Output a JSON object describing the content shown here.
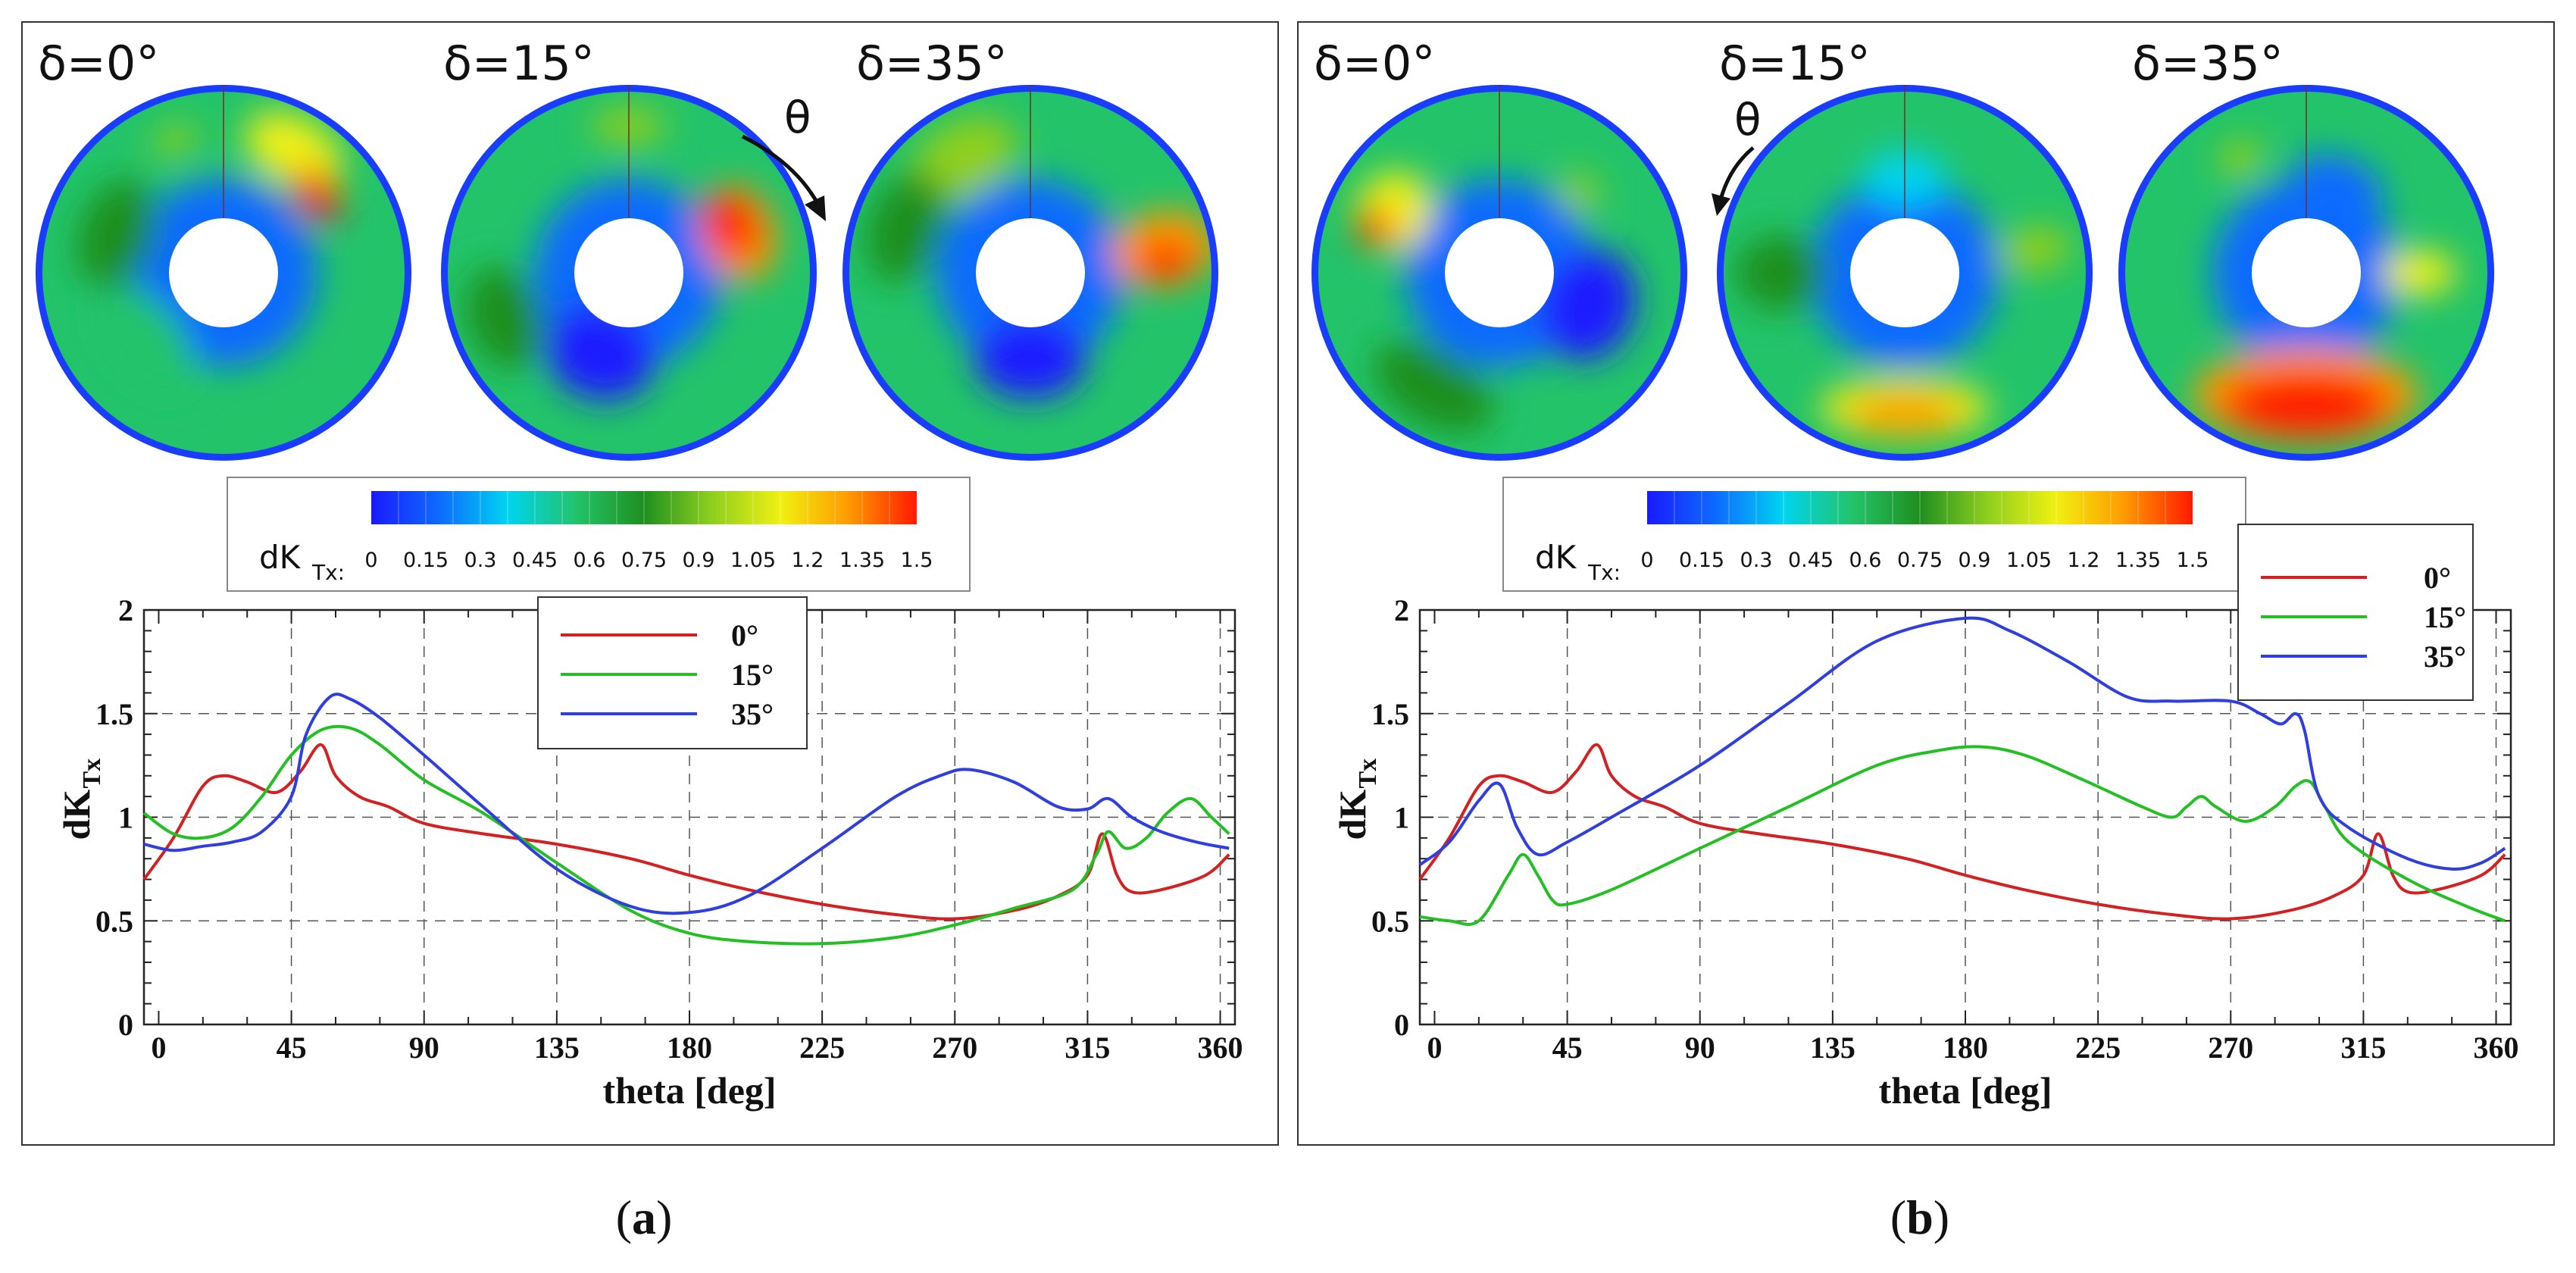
{
  "colors": {
    "s0": "#d42020",
    "s15": "#22c022",
    "s35": "#2e3ee0",
    "cmap": [
      "#1a1aff",
      "#0d6bff",
      "#00d4f0",
      "#23c36a",
      "#1f8f1f",
      "#8fcf1f",
      "#f0f012",
      "#ff9a00",
      "#ff1a00"
    ]
  },
  "panels": [
    {
      "label": "a",
      "contour_titles": [
        "δ=0°",
        "δ=15°",
        "δ=35°"
      ],
      "theta_arrow": "θ",
      "colorbar": {
        "label_main": "dK",
        "label_sub": "Tx:",
        "ticks": [
          "0",
          "0.15",
          "0.3",
          "0.45",
          "0.6",
          "0.75",
          "0.9",
          "1.05",
          "1.2",
          "1.35",
          "1.5"
        ]
      },
      "chart_data": {
        "type": "line",
        "xlabel": "theta [deg]",
        "ylabel_main": "dK",
        "ylabel_sub": "Tx",
        "xlim": [
          -5,
          365
        ],
        "ylim": [
          0,
          2
        ],
        "xticks": [
          0,
          45,
          90,
          135,
          180,
          225,
          270,
          315,
          360
        ],
        "yticks": [
          0,
          0.5,
          1,
          1.5,
          2
        ],
        "ytick_labels": [
          "0",
          "0.5",
          "1",
          "1.5",
          "2"
        ],
        "grid": true,
        "legend_position": "top-center",
        "series": [
          {
            "name": "0°",
            "color_key": "s0",
            "x": [
              -5,
              5,
              15,
              22,
              30,
              40,
              48,
              55,
              60,
              68,
              78,
              90,
              110,
              135,
              160,
              180,
              200,
              225,
              250,
              270,
              290,
              305,
              315,
              320,
              325,
              330,
              340,
              355,
              363
            ],
            "y": [
              0.7,
              0.9,
              1.15,
              1.2,
              1.17,
              1.12,
              1.22,
              1.35,
              1.2,
              1.1,
              1.05,
              0.97,
              0.92,
              0.87,
              0.8,
              0.72,
              0.65,
              0.58,
              0.53,
              0.51,
              0.55,
              0.62,
              0.72,
              0.92,
              0.72,
              0.64,
              0.65,
              0.72,
              0.82
            ]
          },
          {
            "name": "15°",
            "color_key": "s15",
            "x": [
              -5,
              5,
              15,
              25,
              35,
              45,
              55,
              65,
              75,
              90,
              110,
              135,
              160,
              180,
              200,
              225,
              250,
              270,
              290,
              310,
              318,
              322,
              328,
              335,
              342,
              350,
              357,
              363
            ],
            "y": [
              1.02,
              0.92,
              0.9,
              0.95,
              1.1,
              1.3,
              1.42,
              1.43,
              1.35,
              1.18,
              1.02,
              0.78,
              0.55,
              0.44,
              0.4,
              0.39,
              0.42,
              0.48,
              0.56,
              0.65,
              0.82,
              0.93,
              0.85,
              0.9,
              1.02,
              1.09,
              1.0,
              0.92
            ]
          },
          {
            "name": "35°",
            "color_key": "s35",
            "x": [
              -5,
              5,
              15,
              25,
              35,
              45,
              50,
              58,
              65,
              75,
              90,
              110,
              135,
              160,
              180,
              200,
              225,
              250,
              265,
              275,
              290,
              305,
              315,
              322,
              330,
              340,
              352,
              363
            ],
            "y": [
              0.87,
              0.84,
              0.86,
              0.88,
              0.93,
              1.1,
              1.4,
              1.58,
              1.57,
              1.48,
              1.3,
              1.05,
              0.75,
              0.57,
              0.54,
              0.62,
              0.85,
              1.1,
              1.2,
              1.23,
              1.17,
              1.05,
              1.04,
              1.09,
              1.0,
              0.93,
              0.88,
              0.85
            ]
          }
        ]
      }
    },
    {
      "label": "b",
      "contour_titles": [
        "δ=0°",
        "δ=15°",
        "δ=35°"
      ],
      "theta_arrow": "θ",
      "colorbar": {
        "label_main": "dK",
        "label_sub": "Tx:",
        "ticks": [
          "0",
          "0.15",
          "0.3",
          "0.45",
          "0.6",
          "0.75",
          "0.9",
          "1.05",
          "1.2",
          "1.35",
          "1.5"
        ]
      },
      "chart_data": {
        "type": "line",
        "xlabel": "theta [deg]",
        "ylabel_main": "dK",
        "ylabel_sub": "Tx",
        "xlim": [
          -5,
          365
        ],
        "ylim": [
          0,
          2
        ],
        "xticks": [
          0,
          45,
          90,
          135,
          180,
          225,
          270,
          315,
          360
        ],
        "yticks": [
          0,
          0.5,
          1,
          1.5,
          2
        ],
        "ytick_labels": [
          "0",
          "0.5",
          "1",
          "1.5",
          "2"
        ],
        "grid": true,
        "legend_position": "top-right",
        "series": [
          {
            "name": "0°",
            "color_key": "s0",
            "x": [
              -5,
              5,
              15,
              22,
              30,
              40,
              48,
              55,
              60,
              68,
              78,
              90,
              110,
              135,
              160,
              180,
              200,
              225,
              250,
              270,
              290,
              305,
              315,
              320,
              325,
              330,
              340,
              355,
              363
            ],
            "y": [
              0.7,
              0.9,
              1.15,
              1.2,
              1.17,
              1.12,
              1.22,
              1.35,
              1.2,
              1.1,
              1.05,
              0.97,
              0.92,
              0.87,
              0.8,
              0.72,
              0.65,
              0.58,
              0.53,
              0.51,
              0.55,
              0.62,
              0.72,
              0.92,
              0.72,
              0.64,
              0.65,
              0.72,
              0.82
            ]
          },
          {
            "name": "15°",
            "color_key": "s15",
            "x": [
              -5,
              5,
              15,
              25,
              30,
              35,
              40,
              45,
              60,
              90,
              120,
              150,
              170,
              185,
              200,
              220,
              240,
              250,
              255,
              260,
              265,
              275,
              285,
              292,
              297,
              302,
              310,
              330,
              350,
              363
            ],
            "y": [
              0.52,
              0.5,
              0.5,
              0.72,
              0.82,
              0.72,
              0.6,
              0.58,
              0.65,
              0.85,
              1.05,
              1.25,
              1.32,
              1.34,
              1.3,
              1.18,
              1.05,
              1.0,
              1.05,
              1.1,
              1.05,
              0.98,
              1.05,
              1.15,
              1.17,
              1.05,
              0.88,
              0.7,
              0.57,
              0.5
            ]
          },
          {
            "name": "35°",
            "color_key": "s35",
            "x": [
              -5,
              5,
              15,
              22,
              28,
              35,
              45,
              60,
              90,
              120,
              150,
              180,
              195,
              215,
              235,
              250,
              270,
              280,
              287,
              292,
              295,
              300,
              310,
              330,
              345,
              355,
              363
            ],
            "y": [
              0.77,
              0.88,
              1.08,
              1.16,
              0.95,
              0.82,
              0.88,
              1.0,
              1.25,
              1.55,
              1.85,
              1.96,
              1.9,
              1.75,
              1.58,
              1.56,
              1.56,
              1.5,
              1.45,
              1.5,
              1.42,
              1.1,
              0.95,
              0.8,
              0.75,
              0.78,
              0.85
            ]
          }
        ]
      }
    }
  ]
}
